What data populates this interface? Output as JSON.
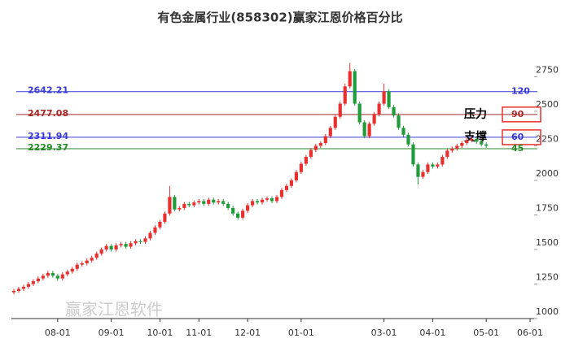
{
  "chart_data": {
    "type": "candlestick",
    "title": "有色金属行业(858302)赢家江恩价格百分比",
    "watermark": "赢家江恩软件",
    "up_color": "#e8312f",
    "down_color": "#1f9b3a",
    "ylim": [
      1000,
      3070
    ],
    "yticks": [
      1000,
      1250,
      1500,
      1750,
      2000,
      2250,
      2500,
      2750
    ],
    "levels": [
      {
        "value": 2642.21,
        "name": "120",
        "color": "#3a3ad6"
      },
      {
        "value": 2477.08,
        "name": "90",
        "color": "#a52a2a",
        "tag": "压力"
      },
      {
        "value": 2311.94,
        "name": "60",
        "color": "#3a3ad6",
        "tag": "支撑"
      },
      {
        "value": 2229.37,
        "name": "45",
        "color": "#2a8a2a"
      }
    ],
    "categories": [
      null,
      null,
      null,
      null,
      null,
      null,
      null,
      null,
      null,
      "08-01",
      null,
      null,
      null,
      null,
      null,
      null,
      null,
      null,
      null,
      null,
      "09-01",
      null,
      null,
      null,
      null,
      null,
      null,
      null,
      null,
      null,
      "10-01",
      null,
      null,
      null,
      null,
      null,
      null,
      null,
      "11-01",
      null,
      null,
      null,
      null,
      null,
      null,
      null,
      null,
      null,
      "12-01",
      null,
      null,
      null,
      null,
      null,
      null,
      null,
      null,
      null,
      null,
      "01-01",
      null,
      null,
      null,
      null,
      null,
      null,
      null,
      null,
      null,
      null,
      null,
      null,
      null,
      null,
      null,
      null,
      "03-01",
      null,
      null,
      null,
      null,
      null,
      null,
      null,
      null,
      null,
      "04-01",
      null,
      null,
      null,
      null,
      null,
      null,
      null,
      null,
      null,
      null,
      "05-01",
      null,
      null,
      null,
      null,
      null,
      null,
      null,
      null,
      "06-01",
      null
    ],
    "open": [
      1190,
      1200,
      1215,
      1230,
      1250,
      1270,
      1290,
      1310,
      1330,
      1310,
      1290,
      1320,
      1340,
      1360,
      1390,
      1400,
      1420,
      1440,
      1470,
      1500,
      1525,
      1500,
      1530,
      1540,
      1520,
      1545,
      1560,
      1555,
      1580,
      1620,
      1660,
      1700,
      1760,
      1880,
      1790,
      1800,
      1830,
      1820,
      1840,
      1850,
      1830,
      1860,
      1840,
      1850,
      1830,
      1800,
      1760,
      1730,
      1780,
      1820,
      1850,
      1840,
      1860,
      1870,
      1850,
      1880,
      1930,
      1960,
      2000,
      2060,
      2120,
      2170,
      2220,
      2250,
      2270,
      2320,
      2380,
      2460,
      2555,
      2680,
      2790,
      2555,
      2420,
      2320,
      2410,
      2480,
      2555,
      2645,
      2530,
      2470,
      2380,
      2330,
      2260,
      2115,
      2025,
      2060,
      2115,
      2100,
      2115,
      2170,
      2215,
      2230,
      2250,
      2270,
      2290,
      2300,
      2280,
      2260,
      null,
      null,
      null,
      null,
      null,
      null,
      null,
      null,
      null,
      null
    ],
    "close": [
      1200,
      1215,
      1230,
      1250,
      1270,
      1290,
      1310,
      1330,
      1310,
      1290,
      1320,
      1340,
      1360,
      1390,
      1400,
      1420,
      1440,
      1470,
      1500,
      1525,
      1500,
      1530,
      1540,
      1520,
      1545,
      1560,
      1555,
      1580,
      1620,
      1660,
      1700,
      1760,
      1880,
      1790,
      1800,
      1830,
      1820,
      1840,
      1850,
      1830,
      1860,
      1840,
      1850,
      1830,
      1800,
      1760,
      1730,
      1780,
      1820,
      1850,
      1840,
      1860,
      1870,
      1850,
      1880,
      1930,
      1960,
      2000,
      2060,
      2120,
      2170,
      2220,
      2250,
      2270,
      2320,
      2380,
      2460,
      2555,
      2680,
      2790,
      2555,
      2420,
      2320,
      2410,
      2480,
      2555,
      2645,
      2530,
      2470,
      2380,
      2330,
      2260,
      2115,
      2025,
      2060,
      2115,
      2100,
      2115,
      2170,
      2215,
      2230,
      2250,
      2270,
      2290,
      2300,
      2280,
      2260,
      2250,
      null,
      null,
      null,
      null,
      null,
      null,
      null,
      null,
      null,
      null
    ],
    "high": [
      1215,
      1230,
      1245,
      1265,
      1285,
      1305,
      1325,
      1345,
      1345,
      1325,
      1335,
      1355,
      1375,
      1405,
      1415,
      1435,
      1455,
      1485,
      1515,
      1540,
      1540,
      1545,
      1555,
      1555,
      1560,
      1575,
      1575,
      1595,
      1635,
      1675,
      1715,
      1775,
      1960,
      1895,
      1815,
      1845,
      1845,
      1855,
      1865,
      1865,
      1875,
      1875,
      1865,
      1865,
      1845,
      1815,
      1775,
      1795,
      1835,
      1865,
      1865,
      1875,
      1885,
      1885,
      1895,
      1945,
      1975,
      2015,
      2075,
      2135,
      2185,
      2235,
      2265,
      2285,
      2335,
      2395,
      2475,
      2570,
      2700,
      2850,
      2805,
      2570,
      2435,
      2425,
      2495,
      2570,
      2700,
      2660,
      2545,
      2485,
      2395,
      2345,
      2275,
      2130,
      2075,
      2130,
      2130,
      2130,
      2185,
      2230,
      2245,
      2265,
      2285,
      2305,
      2315,
      2315,
      2295,
      2275,
      null,
      null,
      null,
      null,
      null,
      null,
      null,
      null,
      null,
      null
    ],
    "low": [
      1175,
      1185,
      1200,
      1215,
      1235,
      1255,
      1275,
      1295,
      1295,
      1275,
      1275,
      1305,
      1325,
      1345,
      1375,
      1385,
      1405,
      1425,
      1455,
      1485,
      1485,
      1485,
      1515,
      1505,
      1505,
      1530,
      1540,
      1540,
      1565,
      1605,
      1645,
      1685,
      1745,
      1775,
      1775,
      1785,
      1805,
      1805,
      1825,
      1815,
      1815,
      1825,
      1825,
      1815,
      1785,
      1745,
      1715,
      1715,
      1765,
      1805,
      1825,
      1825,
      1845,
      1835,
      1835,
      1865,
      1915,
      1945,
      1985,
      2045,
      2105,
      2155,
      2205,
      2235,
      2255,
      2305,
      2365,
      2445,
      2540,
      2665,
      2540,
      2405,
      2305,
      2305,
      2395,
      2465,
      2540,
      2515,
      2455,
      2365,
      2315,
      2245,
      2100,
      1970,
      2010,
      2045,
      2085,
      2085,
      2100,
      2155,
      2200,
      2215,
      2235,
      2255,
      2275,
      2265,
      2245,
      2235,
      null,
      null,
      null,
      null,
      null,
      null,
      null,
      null,
      null,
      null
    ]
  }
}
